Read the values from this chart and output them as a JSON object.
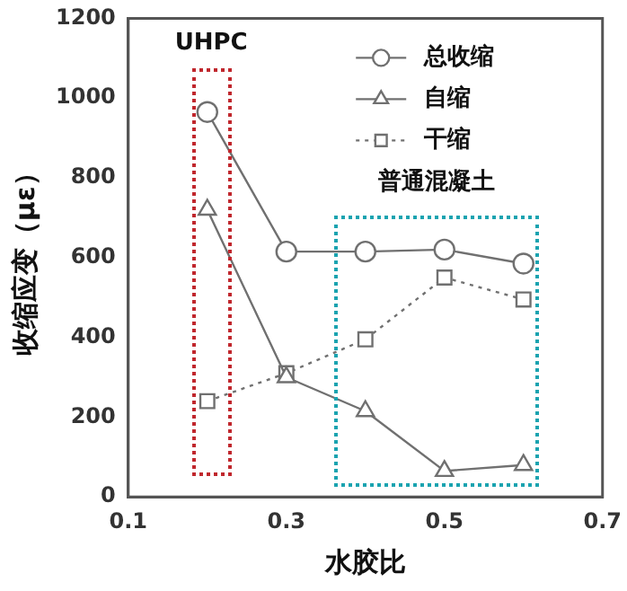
{
  "chart_data": {
    "type": "line",
    "xlabel": "水胶比",
    "ylabel": "收缩应变（με）",
    "x": [
      0.2,
      0.3,
      0.4,
      0.5,
      0.6
    ],
    "series": [
      {
        "name": "总收缩",
        "color": "#707070",
        "values": [
          965,
          615,
          615,
          620,
          585
        ],
        "marker": "circle",
        "line_style": "solid"
      },
      {
        "name": "自缩",
        "color": "#707070",
        "values": [
          720,
          300,
          215,
          65,
          80
        ],
        "marker": "triangle",
        "line_style": "solid"
      },
      {
        "name": "干缩",
        "color": "#707070",
        "values": [
          240,
          310,
          395,
          550,
          495
        ],
        "marker": "square",
        "line_style": "dotted"
      }
    ],
    "xlim": [
      0.1,
      0.7
    ],
    "xticks": [
      0.1,
      0.3,
      0.5,
      0.7
    ],
    "ylim": [
      0,
      1200
    ],
    "yticks": [
      0,
      200,
      400,
      600,
      800,
      1000,
      1200
    ],
    "annotations": [
      "UHPC",
      "普通混凝土"
    ],
    "grid": false,
    "legend": "top right"
  }
}
